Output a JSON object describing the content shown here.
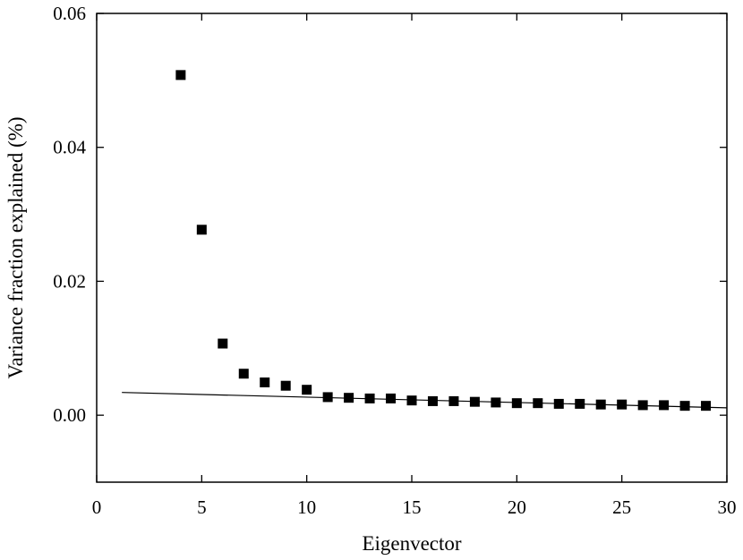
{
  "chart_data": {
    "type": "scatter",
    "title": "",
    "xlabel": "Eigenvector",
    "ylabel": "Variance fraction explained (%)",
    "xlim": [
      0,
      30
    ],
    "ylim": [
      -0.01,
      0.06
    ],
    "x_ticks": [
      0,
      5,
      10,
      15,
      20,
      25,
      30
    ],
    "x_tick_labels": [
      "0",
      "5",
      "10",
      "15",
      "20",
      "25",
      "30"
    ],
    "y_ticks": [
      0.0,
      0.02,
      0.04,
      0.06
    ],
    "y_tick_labels": [
      "0.00",
      "0.02",
      "0.04",
      "0.06"
    ],
    "grid": false,
    "marker": "square",
    "series": [
      {
        "values": [
          {
            "x": 4,
            "y": 0.0508
          },
          {
            "x": 5,
            "y": 0.0277
          },
          {
            "x": 6,
            "y": 0.0107
          },
          {
            "x": 7,
            "y": 0.0062
          },
          {
            "x": 8,
            "y": 0.0049
          },
          {
            "x": 9,
            "y": 0.0044
          },
          {
            "x": 10,
            "y": 0.0038
          },
          {
            "x": 11,
            "y": 0.0027
          },
          {
            "x": 12,
            "y": 0.0026
          },
          {
            "x": 13,
            "y": 0.0025
          },
          {
            "x": 14,
            "y": 0.0025
          },
          {
            "x": 15,
            "y": 0.0022
          },
          {
            "x": 16,
            "y": 0.0021
          },
          {
            "x": 17,
            "y": 0.0021
          },
          {
            "x": 18,
            "y": 0.002
          },
          {
            "x": 19,
            "y": 0.0019
          },
          {
            "x": 20,
            "y": 0.0018
          },
          {
            "x": 21,
            "y": 0.0018
          },
          {
            "x": 22,
            "y": 0.0017
          },
          {
            "x": 23,
            "y": 0.0017
          },
          {
            "x": 24,
            "y": 0.0016
          },
          {
            "x": 25,
            "y": 0.0016
          },
          {
            "x": 26,
            "y": 0.0015
          },
          {
            "x": 27,
            "y": 0.0015
          },
          {
            "x": 28,
            "y": 0.0014
          },
          {
            "x": 29,
            "y": 0.0014
          }
        ]
      }
    ],
    "fit_line": {
      "type": "line",
      "points": [
        {
          "x": 1.2,
          "y": 0.0034
        },
        {
          "x": 30,
          "y": 0.0011
        }
      ]
    }
  }
}
